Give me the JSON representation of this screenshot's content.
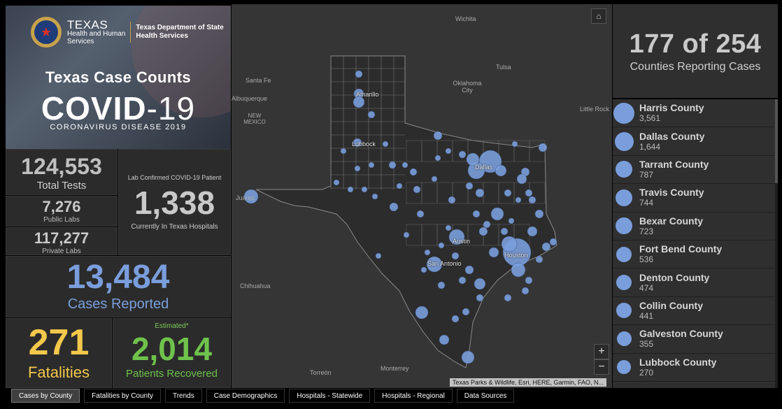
{
  "header": {
    "hhs_line1": "TEXAS",
    "hhs_line2": "Health and Human",
    "hhs_line3": "Services",
    "dshs_line1": "Texas Department of State",
    "dshs_line2": "Health Services",
    "title": "Texas Case Counts",
    "covid_main": "COVID",
    "covid_suffix": "-19",
    "subtitle": "CORONAVIRUS DISEASE 2019"
  },
  "stats": {
    "total_tests": "124,553",
    "total_tests_label": "Total Tests",
    "public_labs": "7,276",
    "public_labs_label": "Public Labs",
    "private_labs": "117,277",
    "private_labs_label": "Private Labs",
    "hosp_top": "Lab Confirmed COVID-19 Patient",
    "hospitalized": "1,338",
    "hosp_label": "Currently In Texas Hospitals",
    "cases": "13,484",
    "cases_label": "Cases Reported",
    "fatalities": "271",
    "fatalities_label": "Fatalities",
    "estimated": "Estimated*",
    "recovered": "2,014",
    "recovered_label": "Patients Recovered"
  },
  "map": {
    "labels": [
      "Wichita",
      "Tulsa",
      "Oklahoma City",
      "Santa Fe",
      "Albuquerque",
      "NEW MEXICO",
      "Little Rock",
      "Juárez",
      "Chihuahua",
      "Torreón",
      "Monterrey"
    ],
    "city_overlays": [
      "Amarillo",
      "Lubbock",
      "Dallas",
      "Austin",
      "San Antonio",
      "Houston"
    ],
    "attribution": "Texas Parks & Wildlife, Esri, HERE, Garmin, FAO, N...",
    "zoom_in": "+",
    "zoom_out": "−",
    "icons": [
      "home-icon",
      "plus-icon",
      "minus-icon"
    ]
  },
  "reporting": {
    "value": "177 of 254",
    "label": "Counties Reporting Cases"
  },
  "counties": [
    {
      "name": "Harris County",
      "value": "3,561"
    },
    {
      "name": "Dallas County",
      "value": "1,644"
    },
    {
      "name": "Tarrant County",
      "value": "787"
    },
    {
      "name": "Travis County",
      "value": "744"
    },
    {
      "name": "Bexar County",
      "value": "723"
    },
    {
      "name": "Fort Bend County",
      "value": "536"
    },
    {
      "name": "Denton County",
      "value": "474"
    },
    {
      "name": "Collin County",
      "value": "441"
    },
    {
      "name": "Galveston County",
      "value": "355"
    },
    {
      "name": "Lubbock County",
      "value": "270"
    }
  ],
  "tabs": [
    "Cases by County",
    "Fatalities by County",
    "Trends",
    "Case Demographics",
    "Hospitals - Statewide",
    "Hospitals - Regional",
    "Data Sources"
  ],
  "colors": {
    "cases": "#7a9edc",
    "fatalities": "#f3c84b",
    "recovered": "#6fc24c",
    "panel": "#2b2b2b",
    "map": "#353535"
  }
}
